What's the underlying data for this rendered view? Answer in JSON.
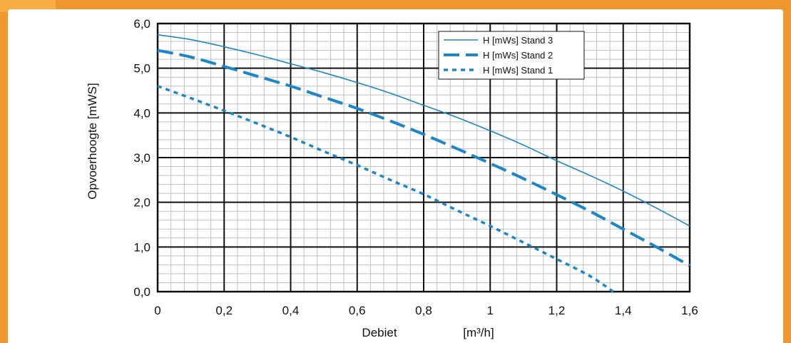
{
  "chart_data": {
    "type": "line",
    "ylabel": "Opvoerhoogte    [mWS]",
    "xlabel": "Debiet",
    "xunit": "[m³/h]",
    "xlim": [
      0,
      1.6
    ],
    "ylim": [
      0,
      6
    ],
    "x_ticks": [
      {
        "value": 0,
        "label": "0"
      },
      {
        "value": 0.2,
        "label": "0,2"
      },
      {
        "value": 0.4,
        "label": "0,4"
      },
      {
        "value": 0.6,
        "label": "0,6"
      },
      {
        "value": 0.8,
        "label": "0,8"
      },
      {
        "value": 1.0,
        "label": "1"
      },
      {
        "value": 1.2,
        "label": "1,2"
      },
      {
        "value": 1.4,
        "label": "1,4"
      },
      {
        "value": 1.6,
        "label": "1,6"
      }
    ],
    "y_ticks": [
      {
        "value": 0,
        "label": "0,0"
      },
      {
        "value": 1,
        "label": "1,0"
      },
      {
        "value": 2,
        "label": "2,0"
      },
      {
        "value": 3,
        "label": "3,0"
      },
      {
        "value": 4,
        "label": "4,0"
      },
      {
        "value": 5,
        "label": "5,0"
      },
      {
        "value": 6,
        "label": "6,0"
      }
    ],
    "minor_grid": {
      "x_step": 0.04,
      "y_step": 0.2
    },
    "grid": true,
    "legend_position": "top-right",
    "series": [
      {
        "name": "H [mWs] Stand 3",
        "style": "solid",
        "color": "#1b86c8",
        "x": [
          0,
          0.1,
          0.2,
          0.3,
          0.4,
          0.5,
          0.6,
          0.7,
          0.8,
          0.9,
          1.0,
          1.1,
          1.2,
          1.3,
          1.4,
          1.5,
          1.6
        ],
        "y": [
          5.75,
          5.64,
          5.48,
          5.3,
          5.1,
          4.9,
          4.68,
          4.44,
          4.17,
          3.9,
          3.6,
          3.28,
          2.93,
          2.6,
          2.25,
          1.87,
          1.47
        ]
      },
      {
        "name": "H [mWs] Stand 2",
        "style": "dashed",
        "color": "#1b86c8",
        "x": [
          0,
          0.1,
          0.2,
          0.3,
          0.4,
          0.5,
          0.6,
          0.7,
          0.8,
          0.9,
          1.0,
          1.1,
          1.2,
          1.3,
          1.4,
          1.5,
          1.6
        ],
        "y": [
          5.4,
          5.25,
          5.04,
          4.82,
          4.6,
          4.35,
          4.1,
          3.82,
          3.52,
          3.2,
          2.87,
          2.53,
          2.17,
          1.8,
          1.4,
          1.0,
          0.58
        ]
      },
      {
        "name": "H [mWs] Stand 1",
        "style": "dotted",
        "color": "#1b86c8",
        "x": [
          0,
          0.1,
          0.2,
          0.3,
          0.4,
          0.5,
          0.6,
          0.7,
          0.8,
          0.9,
          1.0,
          1.1,
          1.2,
          1.3,
          1.37
        ],
        "y": [
          4.6,
          4.33,
          4.05,
          3.76,
          3.46,
          3.14,
          2.83,
          2.5,
          2.18,
          1.82,
          1.47,
          1.1,
          0.73,
          0.35,
          0.0
        ]
      }
    ]
  }
}
